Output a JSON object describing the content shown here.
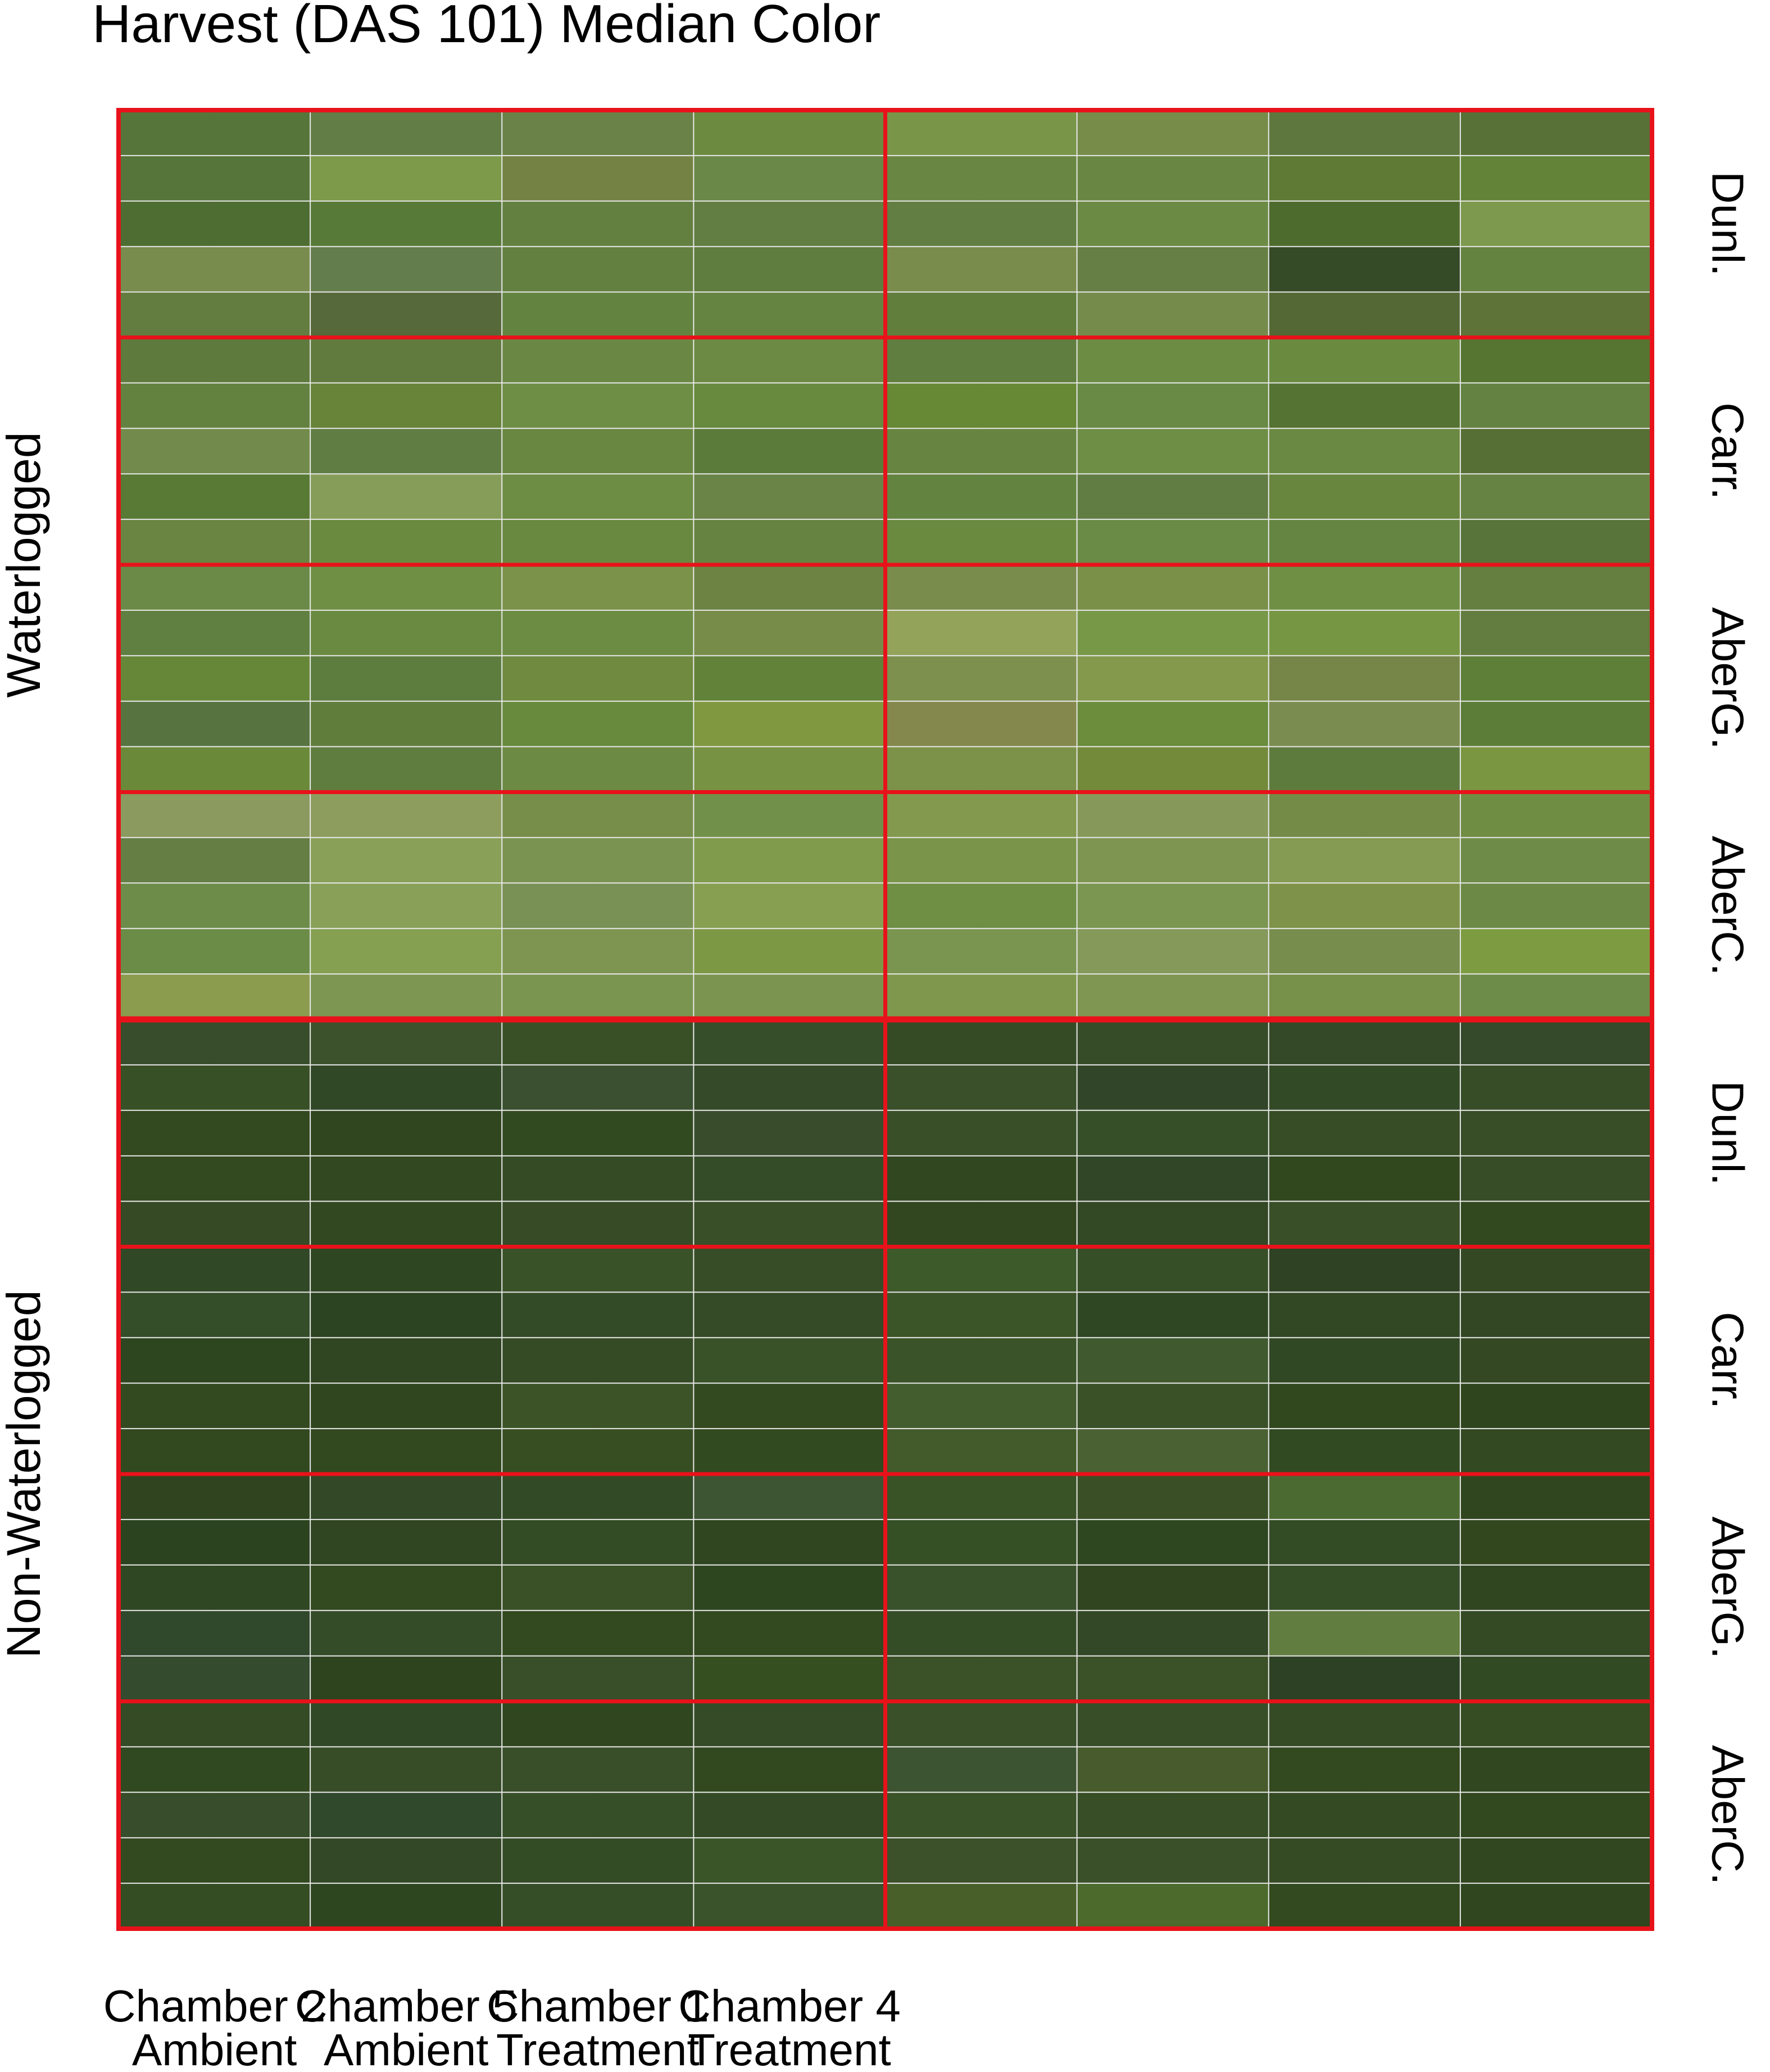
{
  "chart_data": {
    "type": "heatmap",
    "title": "Harvest (DAS 101) Median Color",
    "grid": true,
    "x_categories": [
      {
        "line1": "Chamber 2",
        "line2": "Ambient"
      },
      {
        "line1": "Chamber 5",
        "line2": "Ambient"
      },
      {
        "line1": "Chamber 1",
        "line2": "Treatment"
      },
      {
        "line1": "Chamber 4",
        "line2": "Treatment"
      }
    ],
    "row_groups": [
      {
        "label": "Dunl.",
        "block": "Waterlogged"
      },
      {
        "label": "Carr.",
        "block": "Waterlogged"
      },
      {
        "label": "AberG.",
        "block": "Waterlogged"
      },
      {
        "label": "AberC.",
        "block": "Waterlogged"
      },
      {
        "label": "Dunl.",
        "block": "Non-Waterlogged"
      },
      {
        "label": "Carr.",
        "block": "Non-Waterlogged"
      },
      {
        "label": "AberG.",
        "block": "Non-Waterlogged"
      },
      {
        "label": "AberC.",
        "block": "Non-Waterlogged"
      }
    ],
    "blocks": [
      "Waterlogged",
      "Non-Waterlogged"
    ],
    "rows_per_group": 5,
    "columns_per_category": 2,
    "cell_colors": [
      [
        "#56753a",
        "#56753a",
        "#627d45",
        "#627d45",
        "#6a8248",
        "#6a8248",
        "#6c8b40",
        "#6c8b40",
        "#799648",
        "#799648",
        "#768c48",
        "#768c48",
        "#5e773e",
        "#5e773e",
        "#587137",
        "#587137"
      ],
      [
        "#56753a",
        "#56753a",
        "#7c9a4a",
        "#7c9a4a",
        "#748344",
        "#748344",
        "#6a8848",
        "#6a8848",
        "#698742",
        "#698742",
        "#698742",
        "#698742",
        "#5e7a34",
        "#5e7a34",
        "#638438",
        "#638438"
      ],
      [
        "#4e6d32",
        "#4e6d32",
        "#587a38",
        "#587a38",
        "#638040",
        "#638040",
        "#627e42",
        "#627e42",
        "#627e42",
        "#627e42",
        "#6b8a44",
        "#6b8a44",
        "#4e6b2e",
        "#4e6b2e",
        "#7d994d",
        "#7d994d"
      ],
      [
        "#788c4d",
        "#788c4d",
        "#647d4d",
        "#647d4d",
        "#638040",
        "#638040",
        "#5f7d3f",
        "#5f7d3f",
        "#7a8c4c",
        "#7a8c4c",
        "#667f44",
        "#667f44",
        "#354a27",
        "#354a27",
        "#648240",
        "#648240"
      ],
      [
        "#637c40",
        "#637c40",
        "#56693a",
        "#56693a",
        "#638440",
        "#638440",
        "#668441",
        "#668441",
        "#617e3c",
        "#617e3c",
        "#748b4c",
        "#748b4c",
        "#536834",
        "#536834",
        "#5e7337",
        "#5e7337"
      ],
      [
        "#5f7a3d",
        "#5f7a3d",
        "#617b3e",
        "#617b3e",
        "#6a8844",
        "#6a8844",
        "#6c8a43",
        "#6c8a43",
        "#607e3f",
        "#607e3f",
        "#6c8c44",
        "#6c8c44",
        "#6a8b3f",
        "#6a8b3f",
        "#557530",
        "#557530"
      ],
      [
        "#638240",
        "#638240",
        "#678439",
        "#678439",
        "#6e8d45",
        "#6e8d45",
        "#678a3e",
        "#678a3e",
        "#678834",
        "#678834",
        "#688a44",
        "#688a44",
        "#557332",
        "#557332",
        "#648242",
        "#648242"
      ],
      [
        "#728a4b",
        "#728a4b",
        "#607e44",
        "#607e44",
        "#6a8742",
        "#6a8742",
        "#5b7b3b",
        "#5b7b3b",
        "#678541",
        "#678541",
        "#6f8e45",
        "#6f8e45",
        "#6a8942",
        "#6a8942",
        "#566f35",
        "#566f35"
      ],
      [
        "#587a34",
        "#587a34",
        "#869d5a",
        "#869d5a",
        "#6d8c44",
        "#6d8c44",
        "#6a8448",
        "#6a8448",
        "#638440",
        "#638440",
        "#627d44",
        "#627d44",
        "#68863d",
        "#68863d",
        "#678343",
        "#678343"
      ],
      [
        "#6a8541",
        "#6a8541",
        "#6a8a3f",
        "#6a8a3f",
        "#6a8940",
        "#6a8940",
        "#668341",
        "#668341",
        "#6a8a40",
        "#6a8a40",
        "#6a8b46",
        "#6a8b46",
        "#658542",
        "#658542",
        "#58743a",
        "#58743a"
      ],
      [
        "#6b8a47",
        "#6b8a47",
        "#6f8f45",
        "#6f8f45",
        "#7a9249",
        "#7a9249",
        "#6c8344",
        "#6c8344",
        "#7a8c4c",
        "#7a8c4c",
        "#7a9049",
        "#7a9049",
        "#6f9044",
        "#6f9044",
        "#647f40",
        "#647f40"
      ],
      [
        "#5f8040",
        "#5f8040",
        "#6a8a41",
        "#6a8a41",
        "#6b8c42",
        "#6b8c42",
        "#778c49",
        "#778c49",
        "#93a45a",
        "#93a45a",
        "#779846",
        "#779846",
        "#779643",
        "#779643",
        "#637c40",
        "#637c40"
      ],
      [
        "#668738",
        "#668738",
        "#5d7d3f",
        "#5d7d3f",
        "#708a40",
        "#708a40",
        "#628239",
        "#628239",
        "#7d904e",
        "#7d904e",
        "#84994c",
        "#84994c",
        "#768648",
        "#768648",
        "#5e7f38",
        "#5e7f38"
      ],
      [
        "#577440",
        "#577440",
        "#617d3c",
        "#617d3c",
        "#678a3c",
        "#678a3c",
        "#80983f",
        "#80983f",
        "#84884c",
        "#84884c",
        "#6b8d3c",
        "#6b8d3c",
        "#7a8c4f",
        "#7a8c4f",
        "#5c7d37",
        "#5c7d37"
      ],
      [
        "#6a8a3a",
        "#6a8a3a",
        "#607d40",
        "#607d40",
        "#6c8a44",
        "#6c8a44",
        "#789244",
        "#789244",
        "#7d9249",
        "#7d9249",
        "#738a3a",
        "#738a3a",
        "#5e7b3e",
        "#5e7b3e",
        "#7a9640",
        "#7a9640"
      ],
      [
        "#8b9a5e",
        "#8b9a5e",
        "#8d9d5e",
        "#8d9d5e",
        "#768e49",
        "#768e49",
        "#71904a",
        "#71904a",
        "#839a4e",
        "#839a4e",
        "#86995a",
        "#86995a",
        "#738b47",
        "#738b47",
        "#708d44",
        "#708d44"
      ],
      [
        "#647e44",
        "#647e44",
        "#88a057",
        "#88a057",
        "#7a9351",
        "#7a9351",
        "#809b4c",
        "#809b4c",
        "#7a9449",
        "#7a9449",
        "#7e9552",
        "#7e9552",
        "#859a52",
        "#859a52",
        "#6e8c47",
        "#6e8c47"
      ],
      [
        "#6d8c4a",
        "#6d8c4a",
        "#88a058",
        "#88a058",
        "#799154",
        "#799154",
        "#879f51",
        "#879f51",
        "#6e8f44",
        "#6e8f44",
        "#7a9650",
        "#7a9650",
        "#7e9349",
        "#7e9349",
        "#6c8a46",
        "#6c8a46"
      ],
      [
        "#6a8c46",
        "#6a8c46",
        "#84a050",
        "#84a050",
        "#7d9551",
        "#7d9551",
        "#7d9845",
        "#7d9845",
        "#7a9550",
        "#7a9550",
        "#85995a",
        "#85995a",
        "#768d4d",
        "#768d4d",
        "#7d9c42",
        "#7d9c42"
      ],
      [
        "#8b9c4f",
        "#8b9c4f",
        "#7d9752",
        "#7d9752",
        "#7a9550",
        "#7a9550",
        "#7b9450",
        "#7b9450",
        "#7f974c",
        "#7f974c",
        "#7f9552",
        "#7f9552",
        "#77904a",
        "#77904a",
        "#6e8c49",
        "#6e8c49"
      ],
      [
        "#374d2b",
        "#374d2b",
        "#3b522c",
        "#3b522c",
        "#395026",
        "#395026",
        "#374e2b",
        "#374e2b",
        "#344b26",
        "#344b26",
        "#364b27",
        "#364b27",
        "#334927",
        "#334927",
        "#344a2a",
        "#344a2a"
      ],
      [
        "#385025",
        "#385025",
        "#314827",
        "#314827",
        "#3a5030",
        "#3a5030",
        "#344a28",
        "#344a28",
        "#3a502a",
        "#3a502a",
        "#314628",
        "#314628",
        "#334a26",
        "#334a26",
        "#374d28",
        "#374d28"
      ],
      [
        "#33491f",
        "#33491f",
        "#30461f",
        "#30461f",
        "#324a20",
        "#324a20",
        "#394d2d",
        "#394d2d",
        "#394f28",
        "#394f28",
        "#364f28",
        "#364f28",
        "#364d25",
        "#364d25",
        "#374e27",
        "#374e27"
      ],
      [
        "#334920",
        "#334920",
        "#324820",
        "#324820",
        "#354b25",
        "#354b25",
        "#354c28",
        "#354c28",
        "#304720",
        "#304720",
        "#314627",
        "#314627",
        "#31481f",
        "#31481f",
        "#364d28",
        "#364d28"
      ],
      [
        "#364a25",
        "#364a25",
        "#324820",
        "#324820",
        "#374c26",
        "#374c26",
        "#384f27",
        "#384f27",
        "#32461f",
        "#32461f",
        "#334825",
        "#334825",
        "#384f28",
        "#384f28",
        "#32491f",
        "#32491f"
      ],
      [
        "#314826",
        "#314826",
        "#2f4622",
        "#2f4622",
        "#3a5228",
        "#3a5228",
        "#374d27",
        "#374d27",
        "#3d5a2b",
        "#3d5a2b",
        "#374f26",
        "#374f26",
        "#2f4224",
        "#2f4224",
        "#334823",
        "#334823"
      ],
      [
        "#344e2a",
        "#344e2a",
        "#2d4422",
        "#2d4422",
        "#344b27",
        "#344b27",
        "#354a27",
        "#354a27",
        "#3c5528",
        "#3c5528",
        "#2f4823",
        "#2f4823",
        "#324824",
        "#324824",
        "#334724",
        "#334724"
      ],
      [
        "#2e4620",
        "#2e4620",
        "#304522",
        "#304522",
        "#344b25",
        "#344b25",
        "#395228",
        "#395228",
        "#3a5328",
        "#3a5328",
        "#40592f",
        "#40592f",
        "#314824",
        "#314824",
        "#334823",
        "#334823"
      ],
      [
        "#33491f",
        "#33491f",
        "#2f461f",
        "#2f461f",
        "#3c5327",
        "#3c5327",
        "#334a21",
        "#334a21",
        "#445d2e",
        "#445d2e",
        "#3a5128",
        "#3a5128",
        "#31481f",
        "#31481f",
        "#2f451d",
        "#2f451d"
      ],
      [
        "#324920",
        "#324920",
        "#324920",
        "#324920",
        "#374e22",
        "#374e22",
        "#324a1f",
        "#324a1f",
        "#435b2b",
        "#435b2b",
        "#4a6133",
        "#4a6133",
        "#324a22",
        "#324a22",
        "#324922",
        "#324922"
      ],
      [
        "#30451f",
        "#30451f",
        "#324826",
        "#324826",
        "#324b26",
        "#324b26",
        "#3e5534",
        "#3e5534",
        "#395326",
        "#395326",
        "#3a4f26",
        "#3a4f26",
        "#4b6a31",
        "#4b6a31",
        "#30461f",
        "#30461f"
      ],
      [
        "#2c431f",
        "#2c431f",
        "#304521",
        "#304521",
        "#344c26",
        "#344c26",
        "#2f4620",
        "#2f4620",
        "#365026",
        "#365026",
        "#2f4720",
        "#2f4720",
        "#344c26",
        "#344c26",
        "#33471f",
        "#33471f"
      ],
      [
        "#304723",
        "#304723",
        "#33491f",
        "#33491f",
        "#3a5026",
        "#3a5026",
        "#2d4620",
        "#2d4620",
        "#3a522b",
        "#3a522b",
        "#314520",
        "#314520",
        "#364e28",
        "#364e28",
        "#2f4620",
        "#2f4620"
      ],
      [
        "#30482b",
        "#30482b",
        "#354c28",
        "#354c28",
        "#33491f",
        "#33491f",
        "#33491f",
        "#33491f",
        "#354d27",
        "#354d27",
        "#334826",
        "#334826",
        "#617d40",
        "#617d40",
        "#334a25",
        "#334a25"
      ],
      [
        "#344b2e",
        "#344b2e",
        "#2e441f",
        "#2e441f",
        "#384f2a",
        "#384f2a",
        "#364f20",
        "#364f20",
        "#3b5127",
        "#3b5127",
        "#3b5128",
        "#3b5128",
        "#2d4225",
        "#2d4225",
        "#324a24",
        "#324a24"
      ],
      [
        "#344b26",
        "#344b26",
        "#314826",
        "#314826",
        "#2f461f",
        "#2f461f",
        "#354b28",
        "#354b28",
        "#3a5028",
        "#3a5028",
        "#384e28",
        "#384e28",
        "#354b25",
        "#354b25",
        "#364c22",
        "#364c22"
      ],
      [
        "#314920",
        "#314920",
        "#374d28",
        "#374d28",
        "#384f29",
        "#384f29",
        "#32491f",
        "#32491f",
        "#3c5431",
        "#3c5431",
        "#485b2c",
        "#485b2c",
        "#334920",
        "#334920",
        "#304720",
        "#304720"
      ],
      [
        "#374d2b",
        "#374d2b",
        "#30482b",
        "#30482b",
        "#374f29",
        "#374f29",
        "#344a26",
        "#344a26",
        "#3b5328",
        "#3b5328",
        "#374e26",
        "#374e26",
        "#344a23",
        "#344a23",
        "#32481f",
        "#32481f"
      ],
      [
        "#33491f",
        "#33491f",
        "#334826",
        "#334826",
        "#344c26",
        "#344c26",
        "#3a5628",
        "#3a5628",
        "#3c5029",
        "#3c5029",
        "#3a5028",
        "#3a5028",
        "#354b24",
        "#354b24",
        "#31471f",
        "#31471f"
      ],
      [
        "#354d23",
        "#354d23",
        "#2e4620",
        "#2e4620",
        "#364e27",
        "#364e27",
        "#3a532a",
        "#3a532a",
        "#485f29",
        "#485f29",
        "#4c6a2c",
        "#4c6a2c",
        "#33491f",
        "#33491f",
        "#30461f",
        "#30461f"
      ]
    ]
  }
}
